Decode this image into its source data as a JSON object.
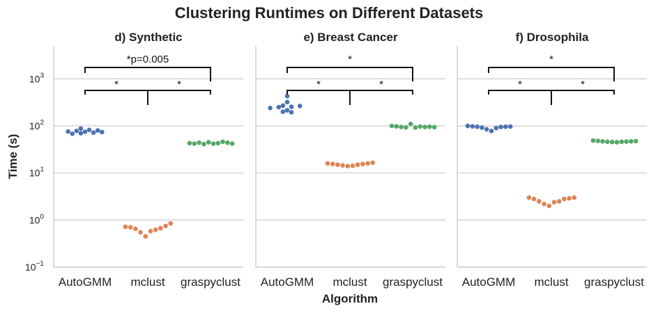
{
  "chart_data": {
    "type": "scatter",
    "subtype": "swarm",
    "title": "Clustering Runtimes on Different Datasets",
    "xlabel": "Algorithm",
    "ylabel": "Time (s)",
    "yscale": "log",
    "ylim": [
      0.1,
      5000
    ],
    "yticks": [
      {
        "base": "10",
        "exp": "−1"
      },
      {
        "base": "10",
        "exp": "0"
      },
      {
        "base": "10",
        "exp": "1"
      },
      {
        "base": "10",
        "exp": "2"
      },
      {
        "base": "10",
        "exp": "3"
      }
    ],
    "ytick_values": [
      0.1,
      1,
      10,
      100,
      1000
    ],
    "grid": true,
    "categories": [
      "AutoGMM",
      "mclust",
      "graspyclust"
    ],
    "colors": {
      "AutoGMM": "#4c72b0",
      "mclust": "#dd8452",
      "graspyclust": "#55a868"
    },
    "panels": [
      {
        "title": "d) Synthetic",
        "series": [
          {
            "category": "AutoGMM",
            "values": [
              75,
              78,
              82,
              72,
              70,
              88,
              76,
              74,
              80,
              68
            ]
          },
          {
            "category": "mclust",
            "values": [
              0.72,
              0.7,
              0.65,
              0.55,
              0.45,
              0.58,
              0.62,
              0.67,
              0.75,
              0.85
            ]
          },
          {
            "category": "graspyclust",
            "values": [
              43,
              42,
              44,
              41,
              45,
              42,
              43,
              46,
              44,
              42
            ]
          }
        ],
        "annotations": [
          {
            "from": "AutoGMM",
            "to": "graspyclust",
            "label": "*p=0.005"
          },
          {
            "from": "AutoGMM",
            "to": "mclust",
            "label": "*"
          },
          {
            "from": "mclust",
            "to": "graspyclust",
            "label": "*"
          }
        ]
      },
      {
        "title": "e) Breast Cancer",
        "series": [
          {
            "category": "AutoGMM",
            "values": [
              430,
              320,
              270,
              255,
              250,
              265,
              240,
              215,
              200,
              195
            ]
          },
          {
            "category": "mclust",
            "values": [
              16,
              15.5,
              15,
              14.5,
              14,
              14.2,
              15,
              15.5,
              16,
              16.5
            ]
          },
          {
            "category": "graspyclust",
            "values": [
              100,
              98,
              95,
              93,
              110,
              92,
              97,
              95,
              96,
              94
            ]
          }
        ],
        "annotations": [
          {
            "from": "AutoGMM",
            "to": "graspyclust",
            "label": "*"
          },
          {
            "from": "AutoGMM",
            "to": "mclust",
            "label": "*"
          },
          {
            "from": "mclust",
            "to": "graspyclust",
            "label": "*"
          }
        ]
      },
      {
        "title": "f) Drosophila",
        "series": [
          {
            "category": "AutoGMM",
            "values": [
              100,
              98,
              96,
              92,
              85,
              78,
              90,
              95,
              96,
              97
            ]
          },
          {
            "category": "mclust",
            "values": [
              3.0,
              2.8,
              2.5,
              2.2,
              2.0,
              2.4,
              2.5,
              2.8,
              2.9,
              3.0
            ]
          },
          {
            "category": "graspyclust",
            "values": [
              49,
              48,
              47,
              46,
              45.5,
              45,
              46,
              46.5,
              47,
              47.5
            ]
          }
        ],
        "annotations": [
          {
            "from": "AutoGMM",
            "to": "graspyclust",
            "label": "*"
          },
          {
            "from": "AutoGMM",
            "to": "mclust",
            "label": "*"
          },
          {
            "from": "mclust",
            "to": "graspyclust",
            "label": "*"
          }
        ]
      }
    ]
  }
}
